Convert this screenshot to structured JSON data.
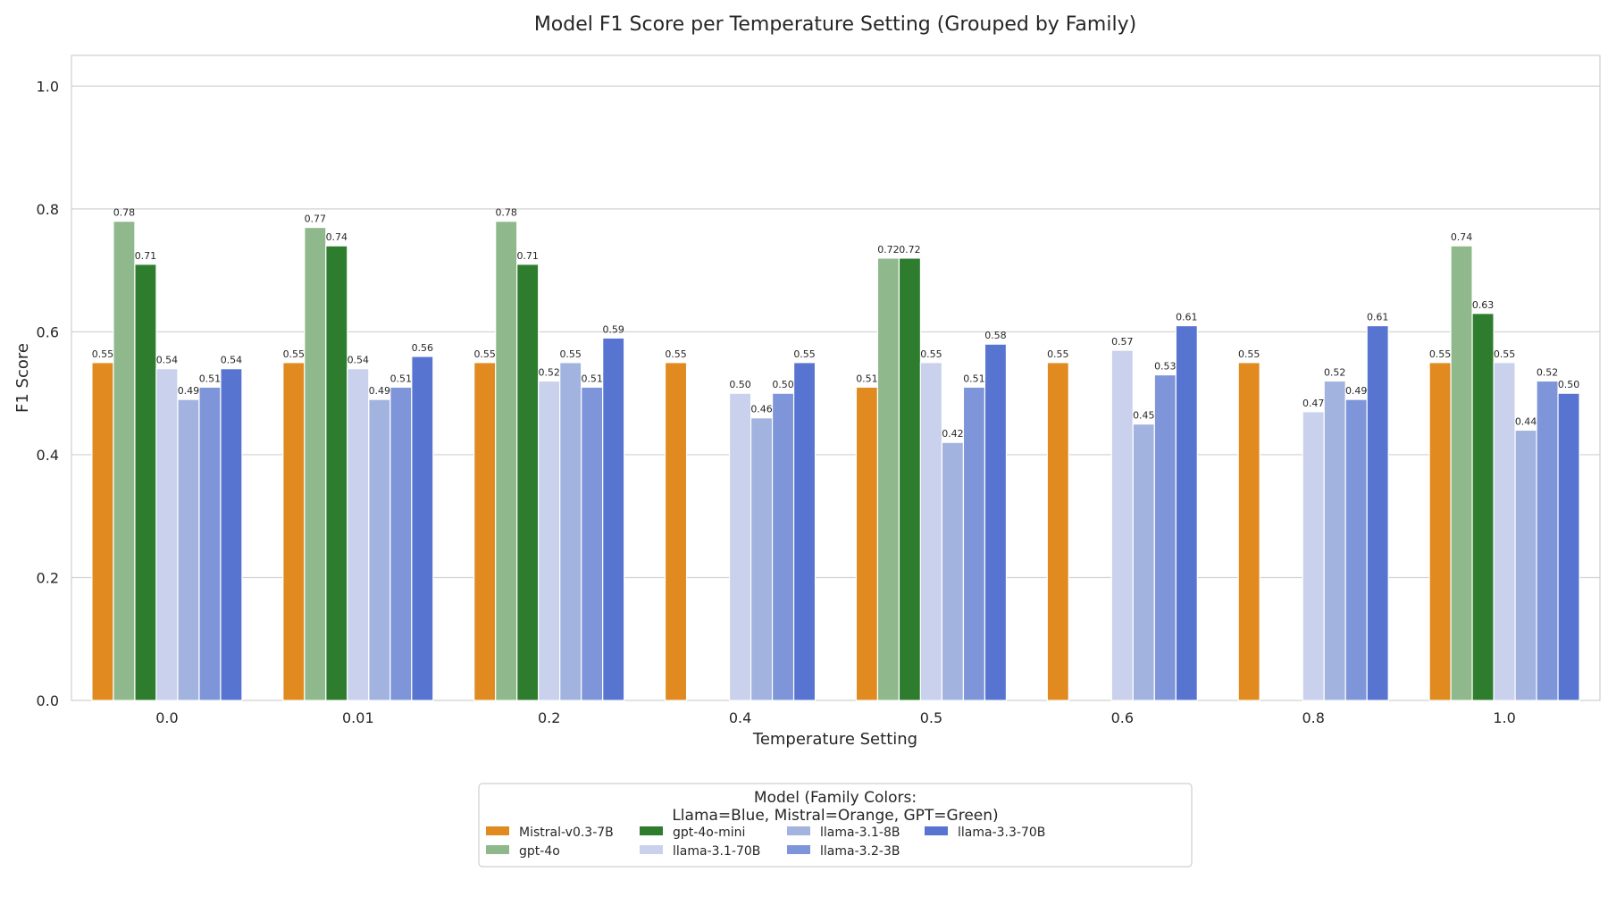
{
  "chart_data": {
    "type": "bar",
    "title": "Model F1 Score per Temperature Setting (Grouped by Family)",
    "xlabel": "Temperature Setting",
    "ylabel": "F1 Score",
    "ylim": [
      0,
      1.05
    ],
    "yticks": [
      "0.0",
      "0.2",
      "0.4",
      "0.6",
      "0.8",
      "1.0"
    ],
    "grid": true,
    "legend_position": "bottom-center",
    "legend_title_line1": "Model (Family Colors:",
    "legend_title_line2": "Llama=Blue, Mistral=Orange, GPT=Green)",
    "categories": [
      "0.0",
      "0.01",
      "0.2",
      "0.4",
      "0.5",
      "0.6",
      "0.8",
      "1.0"
    ],
    "series": [
      {
        "name": "Mistral-v0.3-7B",
        "color": "#E08A20",
        "values": [
          0.55,
          0.55,
          0.55,
          0.55,
          0.51,
          0.55,
          0.55,
          0.55
        ],
        "labels": [
          "0.55",
          "0.55",
          "0.55",
          "0.55",
          "0.51",
          "0.55",
          "0.55",
          "0.55"
        ]
      },
      {
        "name": "gpt-4o",
        "color": "#8FB98C",
        "values": [
          0.78,
          0.77,
          0.78,
          null,
          0.72,
          null,
          null,
          0.74
        ],
        "labels": [
          "0.78",
          "0.77",
          "0.78",
          "",
          "0.72",
          "",
          "",
          "0.74"
        ]
      },
      {
        "name": "gpt-4o-mini",
        "color": "#2E7D2E",
        "values": [
          0.71,
          0.74,
          0.71,
          null,
          0.72,
          null,
          null,
          0.63
        ],
        "labels": [
          "0.71",
          "0.74",
          "0.71",
          "",
          "0.72",
          "",
          "",
          "0.63"
        ]
      },
      {
        "name": "llama-3.1-70B",
        "color": "#C9D1EC",
        "values": [
          0.54,
          0.54,
          0.52,
          0.5,
          0.55,
          0.57,
          0.47,
          0.55
        ],
        "labels": [
          "0.54",
          "0.54",
          "0.52",
          "0.50",
          "0.55",
          "0.57",
          "0.47",
          "0.55"
        ]
      },
      {
        "name": "llama-3.1-8B",
        "color": "#A3B3E0",
        "values": [
          0.49,
          0.49,
          0.55,
          0.46,
          0.42,
          0.45,
          0.52,
          0.44
        ],
        "labels": [
          "0.49",
          "0.49",
          "0.55",
          "0.46",
          "0.42",
          "0.45",
          "0.52",
          "0.44"
        ]
      },
      {
        "name": "llama-3.2-3B",
        "color": "#7E95D9",
        "values": [
          0.51,
          0.51,
          0.51,
          0.5,
          0.51,
          0.53,
          0.49,
          0.52
        ],
        "labels": [
          "0.51",
          "0.51",
          "0.51",
          "0.50",
          "0.51",
          "0.53",
          "0.49",
          "0.52"
        ]
      },
      {
        "name": "llama-3.3-70B",
        "color": "#5874D1",
        "values": [
          0.54,
          0.56,
          0.59,
          0.55,
          0.58,
          0.61,
          0.61,
          0.5
        ],
        "labels": [
          "0.54",
          "0.56",
          "0.59",
          "0.55",
          "0.58",
          "0.61",
          "0.61",
          "0.50"
        ]
      }
    ]
  }
}
